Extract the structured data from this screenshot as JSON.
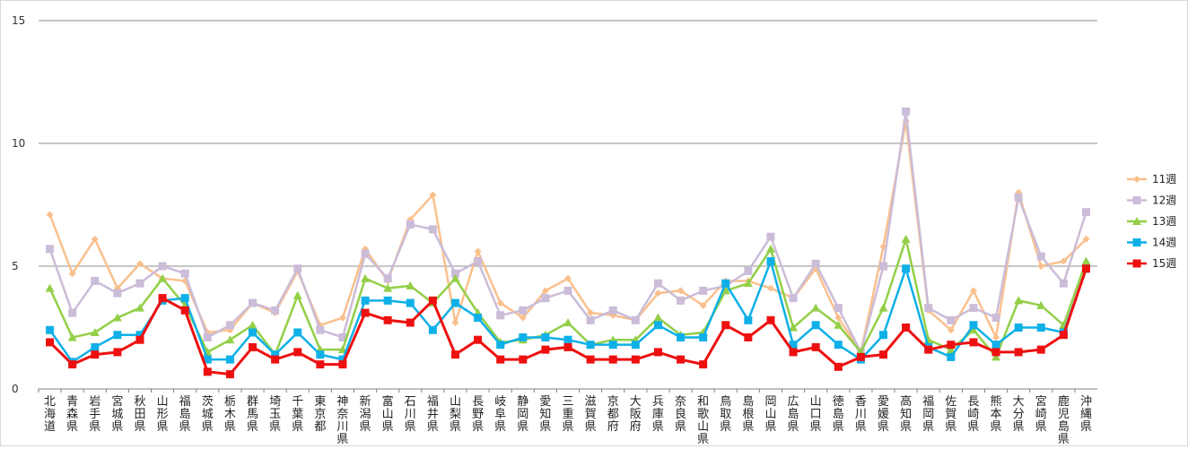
{
  "colors": {
    "w11": "#f9c08d",
    "w12": "#cbbcd8",
    "w13": "#93cf48",
    "w14": "#0fb0e8",
    "w15": "#ee1010",
    "grid": "#8c8c8c",
    "axis": "#7f7f7f"
  },
  "chart_data": {
    "type": "line",
    "title": "",
    "xlabel": "",
    "ylabel": "",
    "ylim": [
      0,
      15
    ],
    "yticks": [
      0,
      5,
      10,
      15
    ],
    "grid": "horizontal",
    "legend_position": "right",
    "categories": [
      "北海道",
      "青森県",
      "岩手県",
      "宮城県",
      "秋田県",
      "山形県",
      "福島県",
      "茨城県",
      "栃木県",
      "群馬県",
      "埼玉県",
      "千葉県",
      "東京都",
      "神奈川県",
      "新潟県",
      "富山県",
      "石川県",
      "福井県",
      "山梨県",
      "長野県",
      "岐阜県",
      "静岡県",
      "愛知県",
      "三重県",
      "滋賀県",
      "京都府",
      "大阪府",
      "兵庫県",
      "奈良県",
      "和歌山県",
      "鳥取県",
      "島根県",
      "岡山県",
      "広島県",
      "山口県",
      "徳島県",
      "香川県",
      "愛媛県",
      "高知県",
      "福岡県",
      "佐賀県",
      "長崎県",
      "熊本県",
      "大分県",
      "宮崎県",
      "鹿児島県",
      "沖縄県"
    ],
    "series": [
      {
        "name": "11週",
        "marker": "diamond",
        "color_key": "w11",
        "values": [
          7.1,
          4.7,
          6.1,
          4.1,
          5.1,
          4.5,
          4.4,
          2.3,
          2.4,
          3.5,
          3.1,
          4.8,
          2.6,
          2.9,
          5.7,
          4.4,
          6.9,
          7.9,
          2.7,
          5.6,
          3.5,
          2.9,
          4.0,
          4.5,
          3.1,
          3.0,
          2.8,
          3.9,
          4.0,
          3.4,
          4.4,
          4.4,
          4.1,
          3.7,
          4.9,
          2.9,
          1.5,
          5.8,
          10.9,
          3.2,
          2.4,
          4.0,
          2.1,
          8.0,
          5.0,
          5.2,
          6.1
        ]
      },
      {
        "name": "12週",
        "marker": "square",
        "color_key": "w12",
        "values": [
          5.7,
          3.1,
          4.4,
          3.9,
          4.3,
          5.0,
          4.7,
          2.1,
          2.6,
          3.5,
          3.2,
          4.9,
          2.4,
          2.1,
          5.5,
          4.5,
          6.7,
          6.5,
          4.7,
          5.2,
          3.0,
          3.2,
          3.7,
          4.0,
          2.8,
          3.2,
          2.8,
          4.3,
          3.6,
          4.0,
          4.2,
          4.8,
          6.2,
          3.7,
          5.1,
          3.3,
          1.5,
          5.0,
          11.3,
          3.3,
          2.8,
          3.3,
          2.9,
          7.8,
          5.4,
          4.3,
          7.2
        ]
      },
      {
        "name": "13週",
        "marker": "triangle",
        "color_key": "w13",
        "values": [
          4.1,
          2.1,
          2.3,
          2.9,
          3.3,
          4.5,
          3.4,
          1.5,
          2.0,
          2.6,
          1.4,
          3.8,
          1.6,
          1.6,
          4.5,
          4.1,
          4.2,
          3.5,
          4.5,
          3.1,
          1.9,
          2.0,
          2.2,
          2.7,
          1.8,
          2.0,
          2.0,
          2.9,
          2.2,
          2.3,
          4.0,
          4.3,
          5.7,
          2.5,
          3.3,
          2.6,
          1.5,
          3.3,
          6.1,
          2.0,
          1.6,
          2.4,
          1.3,
          3.6,
          3.4,
          2.6,
          5.2
        ]
      },
      {
        "name": "14週",
        "marker": "square",
        "color_key": "w14",
        "values": [
          2.4,
          1.1,
          1.7,
          2.2,
          2.2,
          3.6,
          3.7,
          1.2,
          1.2,
          2.3,
          1.4,
          2.3,
          1.4,
          1.2,
          3.6,
          3.6,
          3.5,
          2.4,
          3.5,
          2.9,
          1.8,
          2.1,
          2.1,
          2.0,
          1.8,
          1.8,
          1.8,
          2.6,
          2.1,
          2.1,
          4.3,
          2.8,
          5.2,
          1.8,
          2.6,
          1.8,
          1.2,
          2.2,
          4.9,
          1.7,
          1.3,
          2.6,
          1.8,
          2.5,
          2.5,
          2.3,
          4.9
        ]
      },
      {
        "name": "15週",
        "marker": "square",
        "color_key": "w15",
        "values": [
          1.9,
          1.0,
          1.4,
          1.5,
          2.0,
          3.7,
          3.2,
          0.7,
          0.6,
          1.7,
          1.2,
          1.5,
          1.0,
          1.0,
          3.1,
          2.8,
          2.7,
          3.6,
          1.4,
          2.0,
          1.2,
          1.2,
          1.6,
          1.7,
          1.2,
          1.2,
          1.2,
          1.5,
          1.2,
          1.0,
          2.6,
          2.1,
          2.8,
          1.5,
          1.7,
          0.9,
          1.3,
          1.4,
          2.5,
          1.6,
          1.8,
          1.9,
          1.5,
          1.5,
          1.6,
          2.2,
          4.9
        ]
      }
    ]
  }
}
